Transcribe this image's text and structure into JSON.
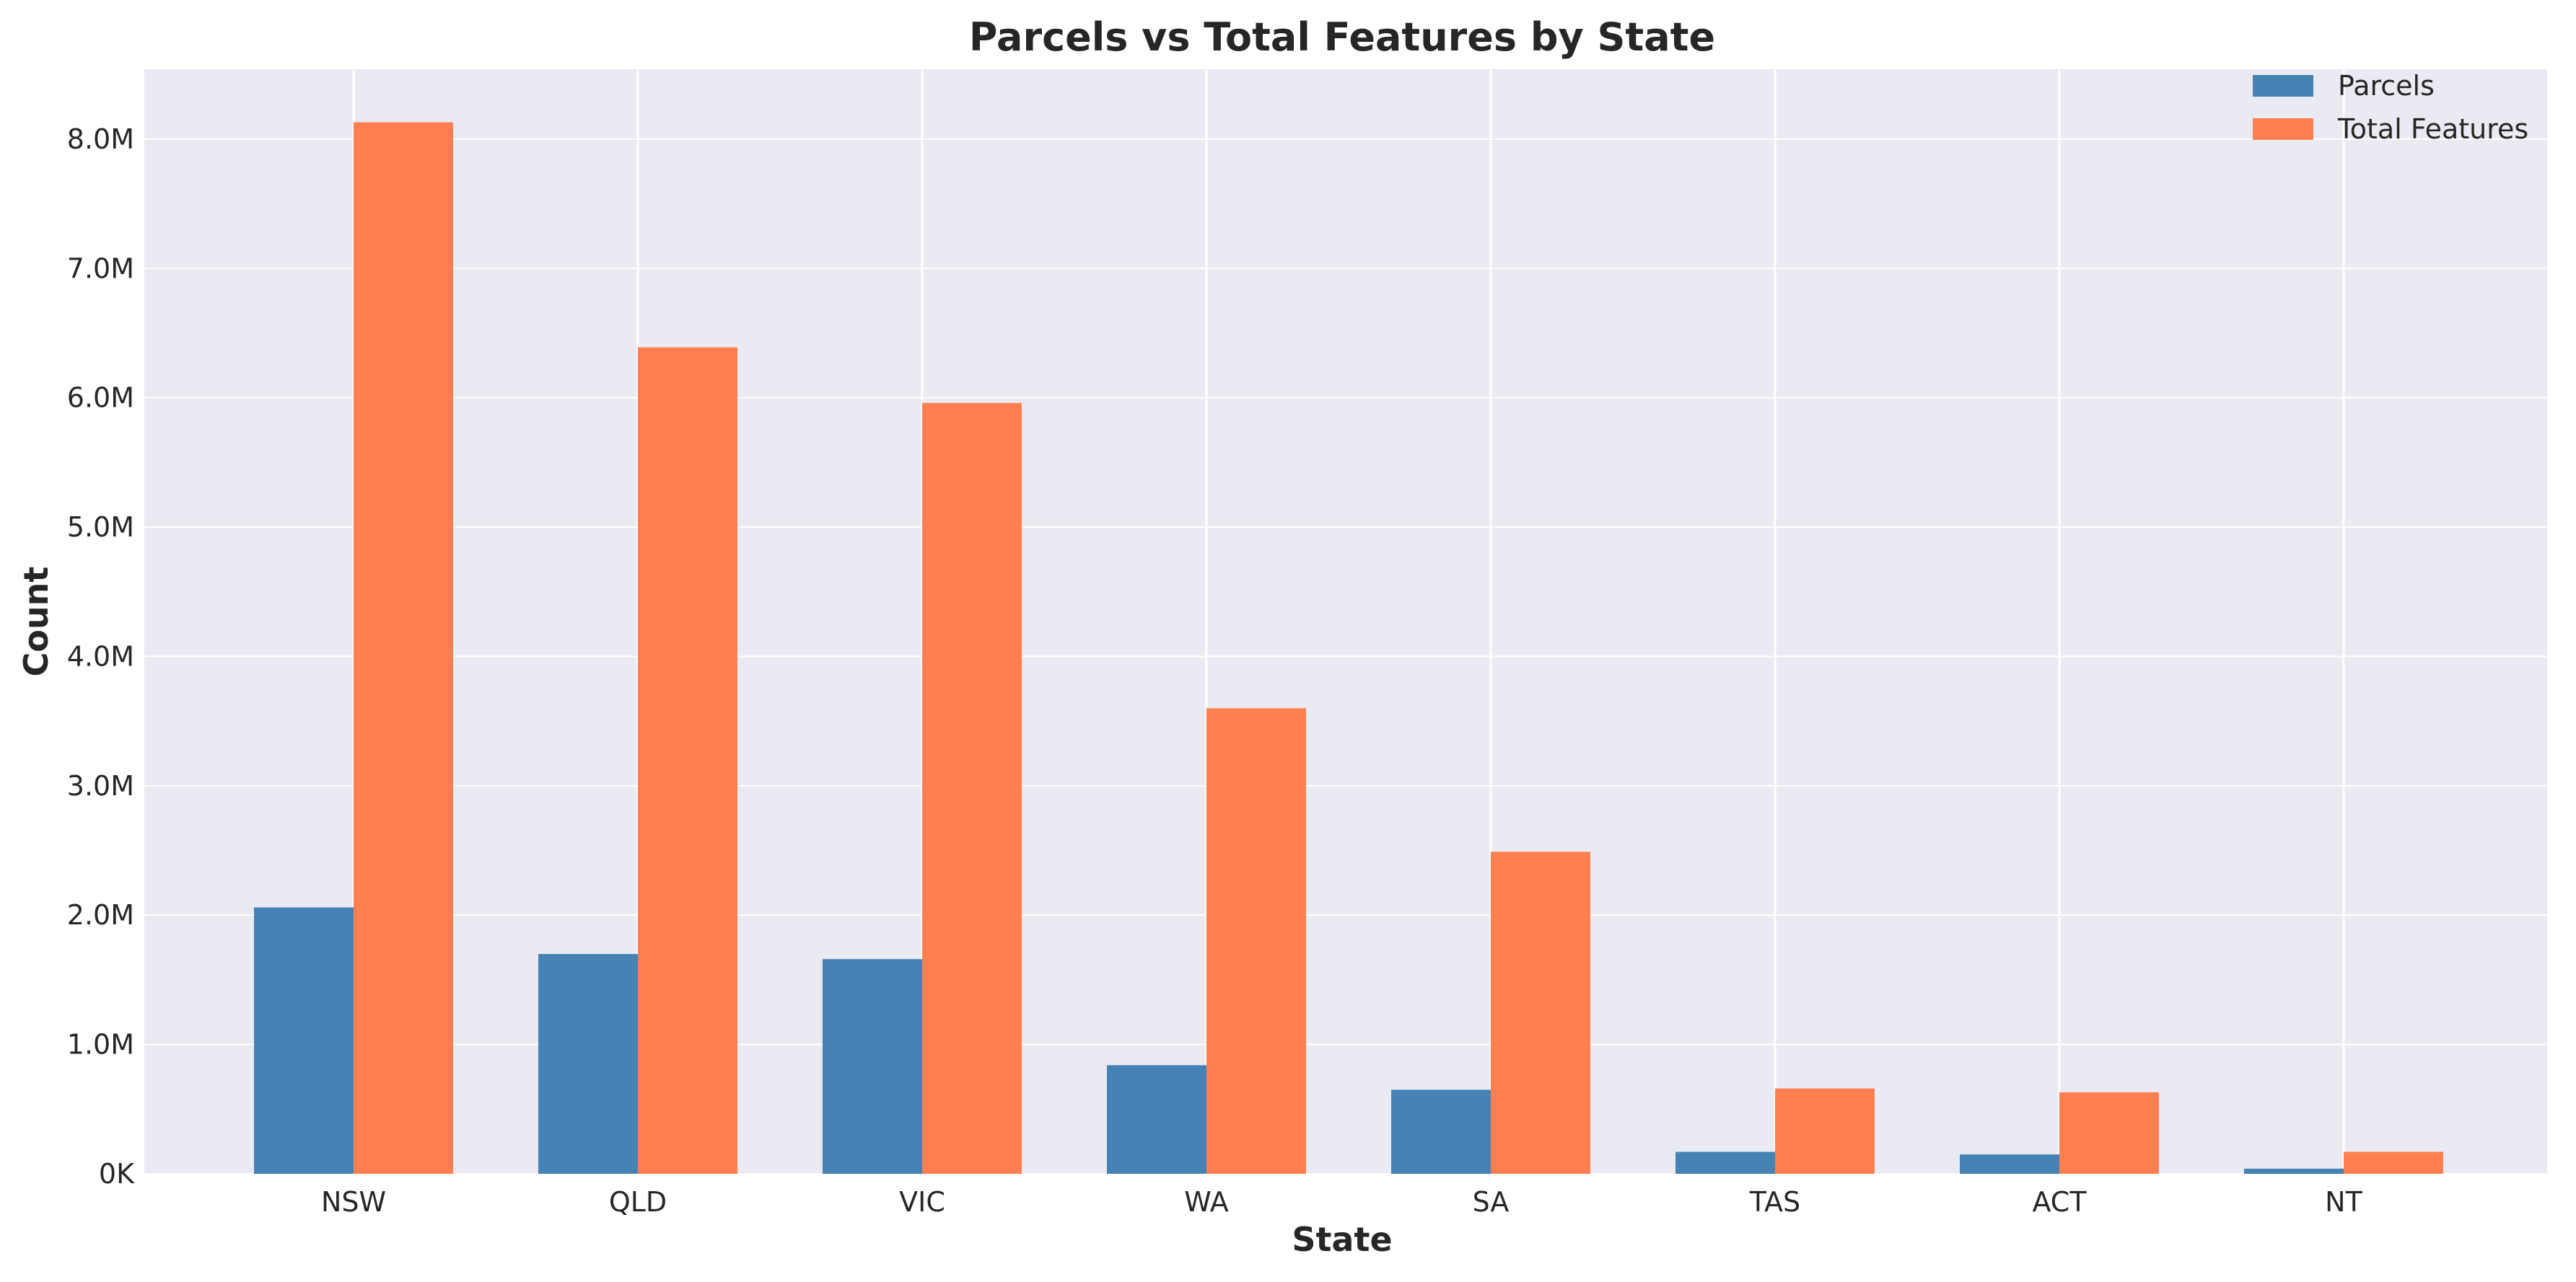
{
  "chart_data": {
    "type": "bar",
    "title": "Parcels vs Total Features by State",
    "xlabel": "State",
    "ylabel": "Count",
    "categories": [
      "NSW",
      "QLD",
      "VIC",
      "WA",
      "SA",
      "TAS",
      "ACT",
      "NT"
    ],
    "series": [
      {
        "name": "Parcels",
        "color": "#4682b4",
        "values": [
          2060000,
          1700000,
          1660000,
          840000,
          650000,
          170000,
          150000,
          40000
        ]
      },
      {
        "name": "Total Features",
        "color": "#ff7f50",
        "values": [
          8130000,
          6390000,
          5960000,
          3600000,
          2490000,
          660000,
          630000,
          170000
        ]
      }
    ],
    "ylim": [
      0,
      8540000
    ],
    "yticks": [
      {
        "value": 0,
        "label": "0K"
      },
      {
        "value": 1000000,
        "label": "1.0M"
      },
      {
        "value": 2000000,
        "label": "2.0M"
      },
      {
        "value": 3000000,
        "label": "3.0M"
      },
      {
        "value": 4000000,
        "label": "4.0M"
      },
      {
        "value": 5000000,
        "label": "5.0M"
      },
      {
        "value": 6000000,
        "label": "6.0M"
      },
      {
        "value": 7000000,
        "label": "7.0M"
      },
      {
        "value": 8000000,
        "label": "8.0M"
      }
    ],
    "grid": true,
    "legend_position": "top-right",
    "background_color": "#eaeaf2",
    "grid_color": "#ffffff"
  }
}
